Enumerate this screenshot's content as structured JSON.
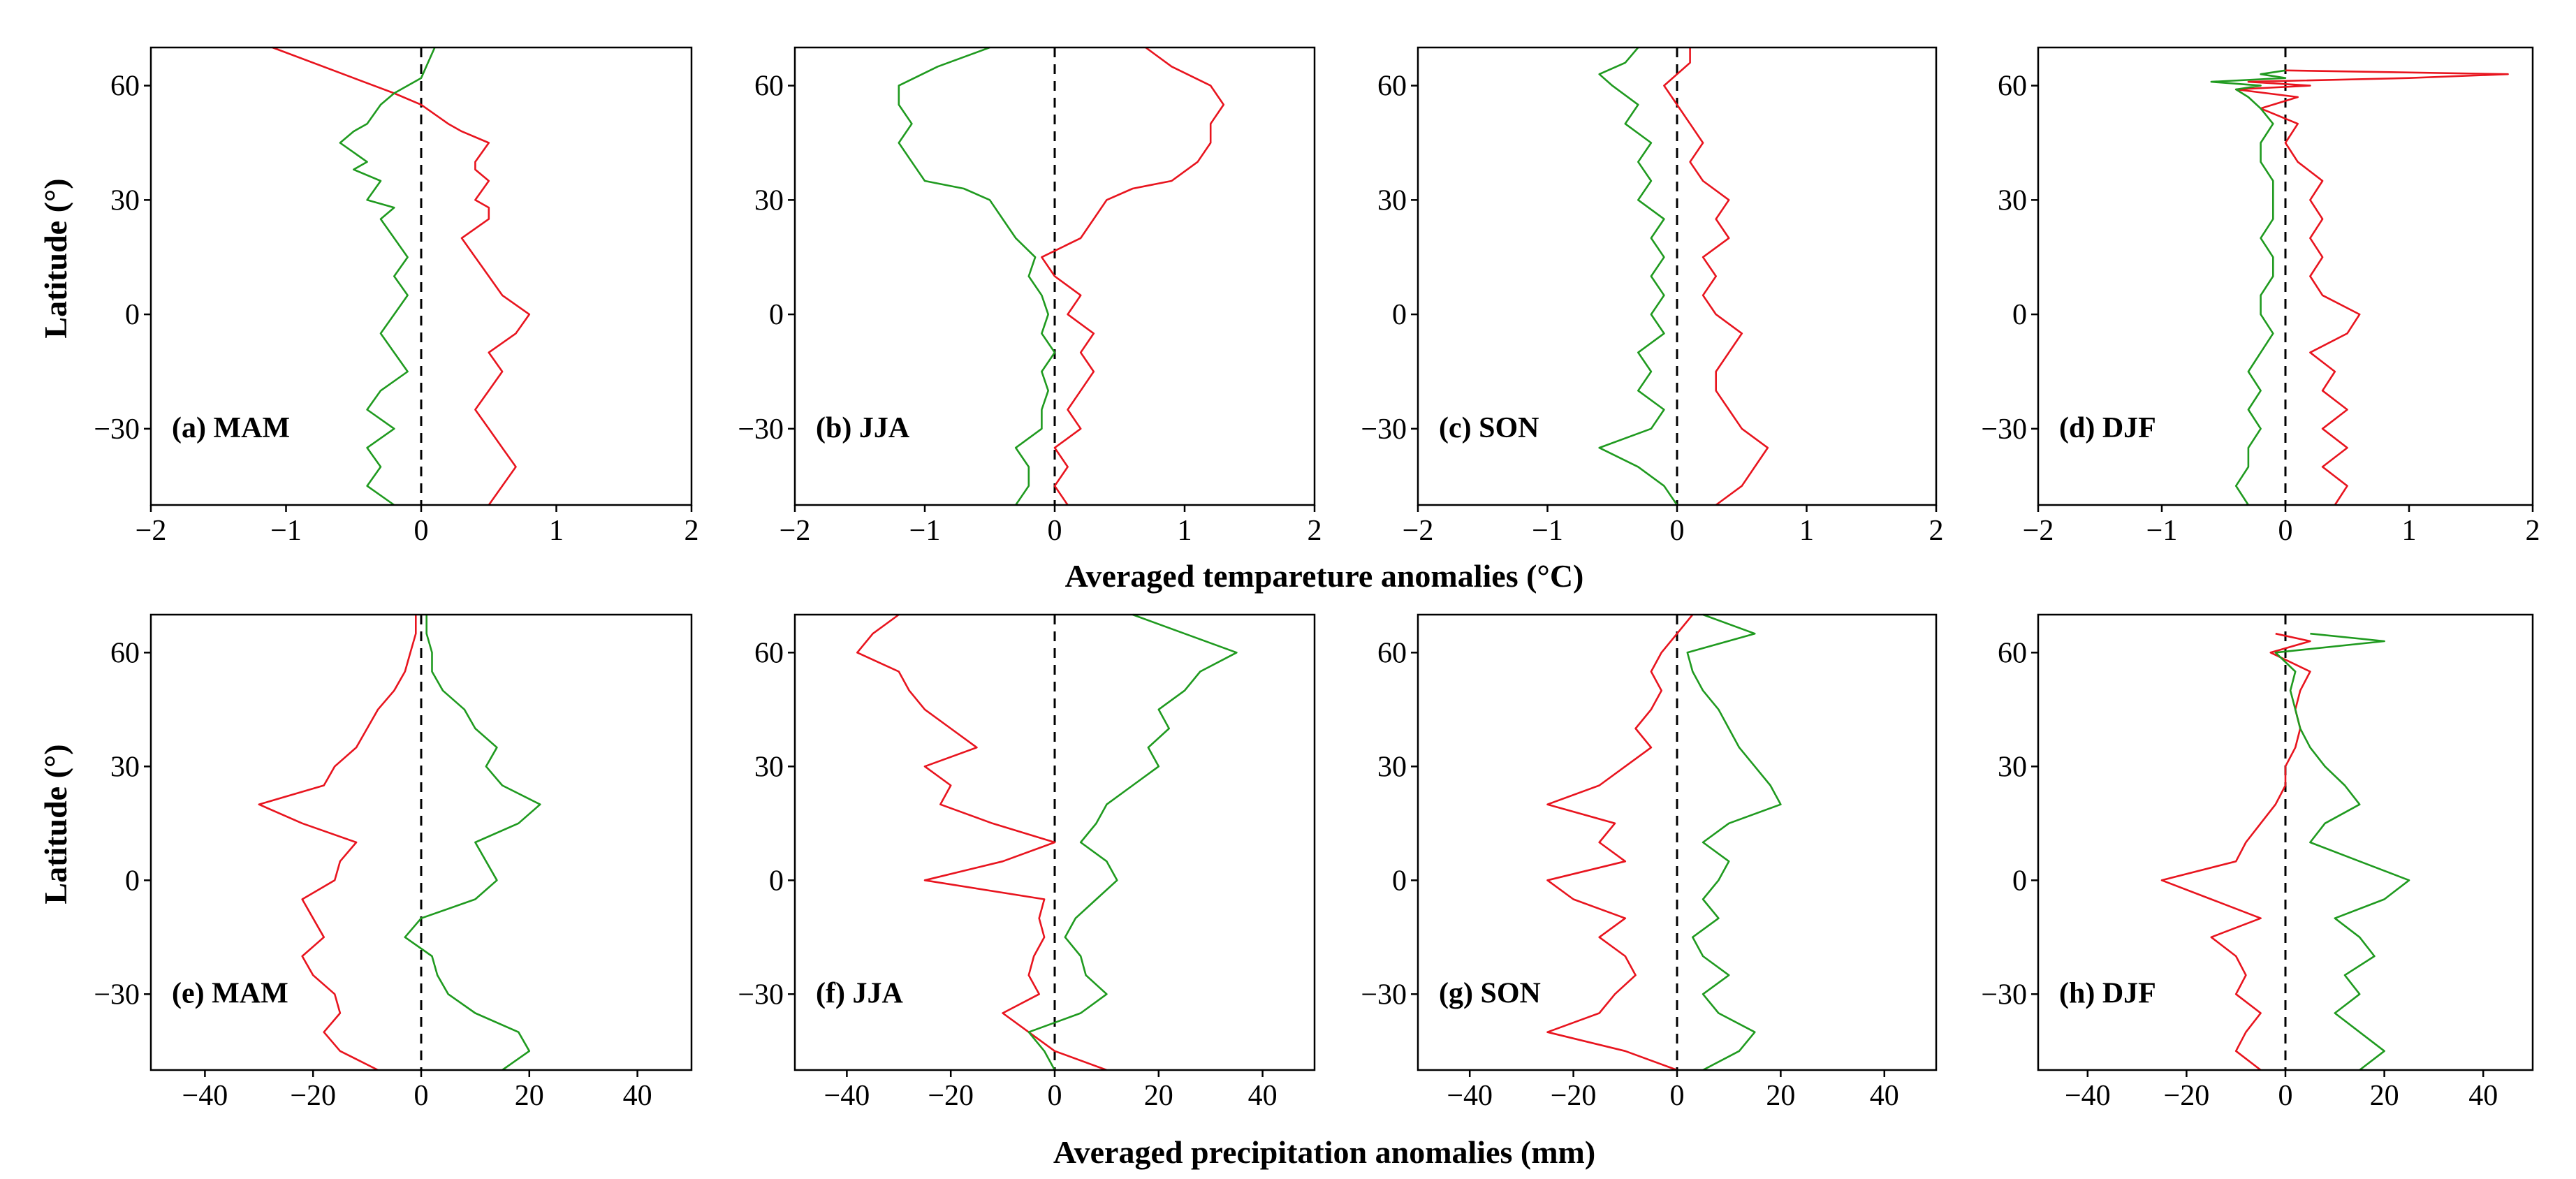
{
  "colors": {
    "red": "#e8141e",
    "green": "#1f9a1f",
    "axis": "#000000"
  },
  "axis_titles": {
    "y_top": "Latitude (°)",
    "y_bottom": "Latitude (°)",
    "x_top": "Averaged tempareture anomalies (°C)",
    "x_bottom": "Averaged precipitation anomalies (mm)"
  },
  "chart_data": [
    {
      "id": "a",
      "label": "(a) MAM",
      "type": "line",
      "variable": "temperature",
      "xlim": [
        -2,
        2
      ],
      "xticks": [
        "−2",
        "−1",
        "0",
        "1",
        "2"
      ],
      "ylim": [
        -50,
        70
      ],
      "yticks": [
        "−30",
        "0",
        "30",
        "60"
      ],
      "series": [
        {
          "name": "red",
          "color": "#e8141e",
          "x": [
            0.5,
            0.6,
            0.7,
            0.6,
            0.5,
            0.4,
            0.5,
            0.6,
            0.5,
            0.7,
            0.8,
            0.6,
            0.5,
            0.4,
            0.3,
            0.5,
            0.5,
            0.4,
            0.5,
            0.4,
            0.4,
            0.5,
            0.3,
            0.2,
            0.0,
            -0.2,
            -0.5,
            -1.1
          ],
          "y": [
            -50,
            -45,
            -40,
            -35,
            -30,
            -25,
            -20,
            -15,
            -10,
            -5,
            0,
            5,
            10,
            15,
            20,
            25,
            28,
            30,
            35,
            38,
            40,
            45,
            48,
            50,
            55,
            58,
            62,
            70
          ]
        },
        {
          "name": "green",
          "color": "#1f9a1f",
          "x": [
            -0.2,
            -0.4,
            -0.3,
            -0.4,
            -0.2,
            -0.4,
            -0.3,
            -0.1,
            -0.2,
            -0.3,
            -0.2,
            -0.1,
            -0.2,
            -0.1,
            -0.2,
            -0.3,
            -0.2,
            -0.4,
            -0.3,
            -0.5,
            -0.4,
            -0.6,
            -0.5,
            -0.4,
            -0.3,
            -0.2,
            0.0,
            0.1
          ],
          "y": [
            -50,
            -45,
            -40,
            -35,
            -30,
            -25,
            -20,
            -15,
            -10,
            -5,
            0,
            5,
            10,
            15,
            20,
            25,
            28,
            30,
            35,
            38,
            40,
            45,
            48,
            50,
            55,
            58,
            62,
            70
          ]
        }
      ]
    },
    {
      "id": "b",
      "label": "(b) JJA",
      "type": "line",
      "variable": "temperature",
      "xlim": [
        -2,
        2
      ],
      "xticks": [
        "−2",
        "−1",
        "0",
        "1",
        "2"
      ],
      "ylim": [
        -50,
        70
      ],
      "yticks": [
        "−30",
        "0",
        "30",
        "60"
      ],
      "series": [
        {
          "name": "red",
          "color": "#e8141e",
          "x": [
            0.1,
            0.0,
            0.1,
            0.0,
            0.2,
            0.1,
            0.2,
            0.3,
            0.2,
            0.3,
            0.1,
            0.2,
            0.0,
            -0.1,
            0.2,
            0.3,
            0.4,
            0.6,
            0.9,
            1.1,
            1.2,
            1.2,
            1.3,
            1.2,
            0.9,
            0.7
          ],
          "y": [
            -50,
            -45,
            -40,
            -35,
            -30,
            -25,
            -20,
            -15,
            -10,
            -5,
            0,
            5,
            10,
            15,
            20,
            25,
            30,
            33,
            35,
            40,
            45,
            50,
            55,
            60,
            65,
            70
          ]
        },
        {
          "name": "green",
          "color": "#1f9a1f",
          "x": [
            -0.3,
            -0.2,
            -0.2,
            -0.3,
            -0.1,
            -0.1,
            -0.05,
            -0.1,
            0.0,
            -0.1,
            -0.05,
            -0.1,
            -0.2,
            -0.15,
            -0.3,
            -0.4,
            -0.5,
            -0.7,
            -1.0,
            -1.1,
            -1.2,
            -1.1,
            -1.2,
            -1.2,
            -0.9,
            -0.5
          ],
          "y": [
            -50,
            -45,
            -40,
            -35,
            -30,
            -25,
            -20,
            -15,
            -10,
            -5,
            0,
            5,
            10,
            15,
            20,
            25,
            30,
            33,
            35,
            40,
            45,
            50,
            55,
            60,
            65,
            70
          ]
        }
      ]
    },
    {
      "id": "c",
      "label": "(c) SON",
      "type": "line",
      "variable": "temperature",
      "xlim": [
        -2,
        2
      ],
      "xticks": [
        "−2",
        "−1",
        "0",
        "1",
        "2"
      ],
      "ylim": [
        -50,
        70
      ],
      "yticks": [
        "−30",
        "0",
        "30",
        "60"
      ],
      "series": [
        {
          "name": "red",
          "color": "#e8141e",
          "x": [
            0.3,
            0.5,
            0.6,
            0.7,
            0.5,
            0.4,
            0.3,
            0.3,
            0.4,
            0.5,
            0.3,
            0.2,
            0.3,
            0.2,
            0.4,
            0.3,
            0.4,
            0.2,
            0.1,
            0.2,
            0.1,
            0.0,
            -0.1,
            0.0,
            0.1,
            0.1
          ],
          "y": [
            -50,
            -45,
            -40,
            -35,
            -30,
            -25,
            -20,
            -15,
            -10,
            -5,
            0,
            5,
            10,
            15,
            20,
            25,
            30,
            35,
            40,
            45,
            50,
            55,
            60,
            63,
            66,
            70
          ]
        },
        {
          "name": "green",
          "color": "#1f9a1f",
          "x": [
            0.0,
            -0.1,
            -0.3,
            -0.6,
            -0.2,
            -0.1,
            -0.3,
            -0.2,
            -0.3,
            -0.1,
            -0.2,
            -0.1,
            -0.2,
            -0.1,
            -0.2,
            -0.1,
            -0.3,
            -0.2,
            -0.3,
            -0.2,
            -0.4,
            -0.3,
            -0.5,
            -0.6,
            -0.4,
            -0.3
          ],
          "y": [
            -50,
            -45,
            -40,
            -35,
            -30,
            -25,
            -20,
            -15,
            -10,
            -5,
            0,
            5,
            10,
            15,
            20,
            25,
            30,
            35,
            40,
            45,
            50,
            55,
            60,
            63,
            66,
            70
          ]
        }
      ]
    },
    {
      "id": "d",
      "label": "(d) DJF",
      "type": "line",
      "variable": "temperature",
      "xlim": [
        -2,
        2
      ],
      "xticks": [
        "−2",
        "−1",
        "0",
        "1",
        "2"
      ],
      "ylim": [
        -50,
        70
      ],
      "yticks": [
        "−30",
        "0",
        "30",
        "60"
      ],
      "series": [
        {
          "name": "red",
          "color": "#e8141e",
          "x": [
            0.4,
            0.5,
            0.3,
            0.5,
            0.3,
            0.5,
            0.3,
            0.4,
            0.2,
            0.5,
            0.6,
            0.3,
            0.2,
            0.3,
            0.2,
            0.3,
            0.2,
            0.3,
            0.1,
            0.0,
            0.1,
            -0.2,
            0.1,
            -0.4,
            0.2,
            -0.3,
            1.0,
            1.8,
            0.0
          ],
          "y": [
            -50,
            -45,
            -40,
            -35,
            -30,
            -25,
            -20,
            -15,
            -10,
            -5,
            0,
            5,
            10,
            15,
            20,
            25,
            30,
            35,
            40,
            45,
            50,
            54,
            57,
            59,
            60,
            61,
            62,
            63,
            64
          ]
        },
        {
          "name": "green",
          "color": "#1f9a1f",
          "x": [
            -0.3,
            -0.4,
            -0.3,
            -0.3,
            -0.2,
            -0.3,
            -0.2,
            -0.3,
            -0.2,
            -0.1,
            -0.2,
            -0.2,
            -0.1,
            -0.1,
            -0.2,
            -0.1,
            -0.1,
            -0.1,
            -0.2,
            -0.2,
            -0.1,
            -0.2,
            -0.3,
            -0.4,
            -0.2,
            -0.6,
            0.0,
            -0.2,
            0.0
          ],
          "y": [
            -50,
            -45,
            -40,
            -35,
            -30,
            -25,
            -20,
            -15,
            -10,
            -5,
            0,
            5,
            10,
            15,
            20,
            25,
            30,
            35,
            40,
            45,
            50,
            54,
            57,
            59,
            60,
            61,
            62,
            63,
            64
          ]
        }
      ]
    },
    {
      "id": "e",
      "label": "(e) MAM",
      "type": "line",
      "variable": "precipitation",
      "xlim": [
        -50,
        50
      ],
      "xticks": [
        "−40",
        "−20",
        "0",
        "20",
        "40"
      ],
      "ylim": [
        -50,
        70
      ],
      "yticks": [
        "−30",
        "0",
        "30",
        "60"
      ],
      "series": [
        {
          "name": "red",
          "color": "#e8141e",
          "x": [
            -8,
            -15,
            -18,
            -15,
            -16,
            -20,
            -22,
            -18,
            -20,
            -22,
            -16,
            -15,
            -12,
            -22,
            -30,
            -18,
            -16,
            -12,
            -10,
            -8,
            -5,
            -3,
            -2,
            -1,
            -1
          ],
          "y": [
            -50,
            -45,
            -40,
            -35,
            -30,
            -25,
            -20,
            -15,
            -10,
            -5,
            0,
            5,
            10,
            15,
            20,
            25,
            30,
            35,
            40,
            45,
            50,
            55,
            60,
            65,
            70
          ]
        },
        {
          "name": "green",
          "color": "#1f9a1f",
          "x": [
            15,
            20,
            18,
            10,
            5,
            3,
            2,
            -3,
            0,
            10,
            14,
            12,
            10,
            18,
            22,
            15,
            12,
            14,
            10,
            8,
            4,
            2,
            2,
            1,
            1
          ],
          "y": [
            -50,
            -45,
            -40,
            -35,
            -30,
            -25,
            -20,
            -15,
            -10,
            -5,
            0,
            5,
            10,
            15,
            20,
            25,
            30,
            35,
            40,
            45,
            50,
            55,
            60,
            65,
            70
          ]
        }
      ]
    },
    {
      "id": "f",
      "label": "(f) JJA",
      "type": "line",
      "variable": "precipitation",
      "xlim": [
        -50,
        50
      ],
      "xticks": [
        "−40",
        "−20",
        "0",
        "20",
        "40"
      ],
      "ylim": [
        -50,
        70
      ],
      "yticks": [
        "−30",
        "0",
        "30",
        "60"
      ],
      "series": [
        {
          "name": "red",
          "color": "#e8141e",
          "x": [
            10,
            0,
            -5,
            -10,
            -3,
            -5,
            -4,
            -2,
            -3,
            -2,
            -25,
            -10,
            0,
            -12,
            -22,
            -20,
            -25,
            -15,
            -20,
            -25,
            -28,
            -30,
            -38,
            -35,
            -30
          ],
          "y": [
            -50,
            -45,
            -40,
            -35,
            -30,
            -25,
            -20,
            -15,
            -10,
            -5,
            0,
            5,
            10,
            15,
            20,
            25,
            30,
            35,
            40,
            45,
            50,
            55,
            60,
            65,
            70
          ]
        },
        {
          "name": "green",
          "color": "#1f9a1f",
          "x": [
            0,
            -2,
            -5,
            5,
            10,
            6,
            5,
            2,
            4,
            8,
            12,
            10,
            5,
            8,
            10,
            15,
            20,
            18,
            22,
            20,
            25,
            28,
            35,
            25,
            15
          ],
          "y": [
            -50,
            -45,
            -40,
            -35,
            -30,
            -25,
            -20,
            -15,
            -10,
            -5,
            0,
            5,
            10,
            15,
            20,
            25,
            30,
            35,
            40,
            45,
            50,
            55,
            60,
            65,
            70
          ]
        }
      ]
    },
    {
      "id": "g",
      "label": "(g) SON",
      "type": "line",
      "variable": "precipitation",
      "xlim": [
        -50,
        50
      ],
      "xticks": [
        "−40",
        "−20",
        "0",
        "20",
        "40"
      ],
      "ylim": [
        -50,
        70
      ],
      "yticks": [
        "−30",
        "0",
        "30",
        "60"
      ],
      "series": [
        {
          "name": "red",
          "color": "#e8141e",
          "x": [
            0,
            -10,
            -25,
            -15,
            -12,
            -8,
            -10,
            -15,
            -10,
            -20,
            -25,
            -10,
            -15,
            -12,
            -25,
            -15,
            -10,
            -5,
            -8,
            -5,
            -3,
            -5,
            -3,
            0,
            3
          ],
          "y": [
            -50,
            -45,
            -40,
            -35,
            -30,
            -25,
            -20,
            -15,
            -10,
            -5,
            0,
            5,
            10,
            15,
            20,
            25,
            30,
            35,
            40,
            45,
            50,
            55,
            60,
            65,
            70
          ]
        },
        {
          "name": "green",
          "color": "#1f9a1f",
          "x": [
            5,
            12,
            15,
            8,
            5,
            10,
            5,
            3,
            8,
            5,
            8,
            10,
            5,
            10,
            20,
            18,
            15,
            12,
            10,
            8,
            5,
            3,
            2,
            15,
            5
          ],
          "y": [
            -50,
            -45,
            -40,
            -35,
            -30,
            -25,
            -20,
            -15,
            -10,
            -5,
            0,
            5,
            10,
            15,
            20,
            25,
            30,
            35,
            40,
            45,
            50,
            55,
            60,
            65,
            70
          ]
        }
      ]
    },
    {
      "id": "h",
      "label": "(h) DJF",
      "type": "line",
      "variable": "precipitation",
      "xlim": [
        -50,
        50
      ],
      "xticks": [
        "−40",
        "−20",
        "0",
        "20",
        "40"
      ],
      "ylim": [
        -50,
        70
      ],
      "yticks": [
        "−30",
        "0",
        "30",
        "60"
      ],
      "series": [
        {
          "name": "red",
          "color": "#e8141e",
          "x": [
            -5,
            -10,
            -8,
            -5,
            -10,
            -8,
            -10,
            -15,
            -5,
            -15,
            -25,
            -10,
            -8,
            -5,
            -2,
            0,
            0,
            2,
            3,
            2,
            3,
            5,
            -3,
            5,
            -2
          ],
          "y": [
            -50,
            -45,
            -40,
            -35,
            -30,
            -25,
            -20,
            -15,
            -10,
            -5,
            0,
            5,
            10,
            15,
            20,
            25,
            30,
            35,
            40,
            45,
            50,
            55,
            60,
            63,
            65
          ]
        },
        {
          "name": "green",
          "color": "#1f9a1f",
          "x": [
            15,
            20,
            15,
            10,
            15,
            12,
            18,
            15,
            10,
            20,
            25,
            15,
            5,
            8,
            15,
            12,
            8,
            5,
            3,
            2,
            1,
            2,
            -2,
            20,
            5
          ],
          "y": [
            -50,
            -45,
            -40,
            -35,
            -30,
            -25,
            -20,
            -15,
            -10,
            -5,
            0,
            5,
            10,
            15,
            20,
            25,
            30,
            35,
            40,
            45,
            50,
            55,
            60,
            63,
            65
          ]
        }
      ]
    }
  ]
}
